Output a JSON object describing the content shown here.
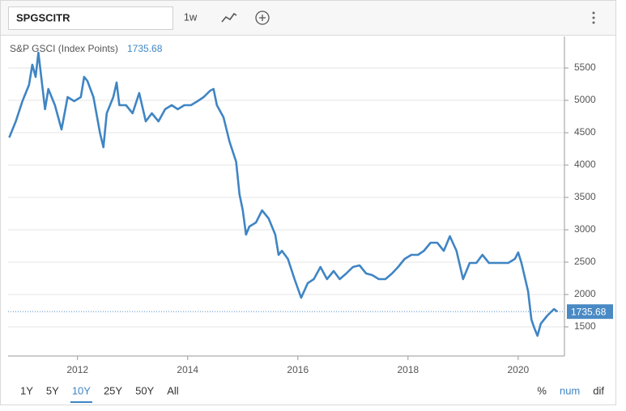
{
  "toolbar": {
    "symbol": "SPGSCITR",
    "interval": "1w"
  },
  "ranges": [
    "1Y",
    "5Y",
    "10Y",
    "25Y",
    "50Y",
    "All"
  ],
  "active_range": "10Y",
  "modes": [
    "%",
    "num",
    "dif"
  ],
  "active_mode": "num",
  "chart_data": {
    "type": "line",
    "last_value": 1735.68,
    "last_value_color": "#4a8ac4",
    "x": [
      2010.76,
      2010.88,
      2011.0,
      2011.12,
      2011.18,
      2011.24,
      2011.29,
      2011.35,
      2011.41,
      2011.47,
      2011.59,
      2011.71,
      2011.82,
      2011.94,
      2012.06,
      2012.12,
      2012.18,
      2012.29,
      2012.41,
      2012.47,
      2012.53,
      2012.65,
      2012.71,
      2012.76,
      2012.88,
      2013.0,
      2013.12,
      2013.24,
      2013.35,
      2013.47,
      2013.59,
      2013.71,
      2013.82,
      2013.94,
      2014.06,
      2014.18,
      2014.29,
      2014.41,
      2014.47,
      2014.53,
      2014.65,
      2014.76,
      2014.88,
      2014.94,
      2015.0,
      2015.06,
      2015.12,
      2015.24,
      2015.35,
      2015.47,
      2015.59,
      2015.65,
      2015.71,
      2015.82,
      2015.94,
      2016.06,
      2016.18,
      2016.29,
      2016.41,
      2016.53,
      2016.65,
      2016.76,
      2016.88,
      2017.0,
      2017.12,
      2017.24,
      2017.35,
      2017.47,
      2017.59,
      2017.71,
      2017.82,
      2017.94,
      2018.06,
      2018.18,
      2018.29,
      2018.41,
      2018.53,
      2018.65,
      2018.76,
      2018.88,
      2019.0,
      2019.12,
      2019.24,
      2019.35,
      2019.47,
      2019.59,
      2019.71,
      2019.82,
      2019.94,
      2020.0,
      2020.06,
      2020.18,
      2020.24,
      2020.29,
      2020.35,
      2020.41,
      2020.53,
      2020.65,
      2020.71
    ],
    "series": [
      {
        "name": "S&P GSCI (Index Points)",
        "color": "#3f85c4",
        "values": [
          4425,
          4675,
          4988,
          5238,
          5550,
          5363,
          5738,
          5300,
          4863,
          5175,
          4925,
          4550,
          5050,
          4988,
          5050,
          5363,
          5300,
          5050,
          4488,
          4275,
          4800,
          5050,
          5275,
          4925,
          4925,
          4800,
          5113,
          4675,
          4800,
          4675,
          4863,
          4925,
          4863,
          4925,
          4925,
          4988,
          5050,
          5150,
          5175,
          4925,
          4738,
          4363,
          4050,
          3550,
          3300,
          2925,
          3050,
          3113,
          3300,
          3175,
          2925,
          2613,
          2675,
          2550,
          2238,
          1950,
          2175,
          2238,
          2425,
          2238,
          2363,
          2238,
          2325,
          2425,
          2450,
          2325,
          2300,
          2238,
          2238,
          2325,
          2425,
          2550,
          2613,
          2613,
          2675,
          2800,
          2800,
          2675,
          2900,
          2675,
          2238,
          2488,
          2488,
          2613,
          2488,
          2488,
          2488,
          2488,
          2550,
          2650,
          2488,
          2050,
          1613,
          1488,
          1363,
          1550,
          1675,
          1775,
          1736
        ]
      }
    ],
    "xlim": [
      2010.74,
      2020.84
    ],
    "xticks": [
      2012,
      2014,
      2016,
      2018,
      2020
    ],
    "ylim": [
      1050,
      5988
    ],
    "yticks": [
      1500,
      2000,
      2500,
      3000,
      3500,
      4000,
      4500,
      5000,
      5500
    ],
    "grid": true
  }
}
